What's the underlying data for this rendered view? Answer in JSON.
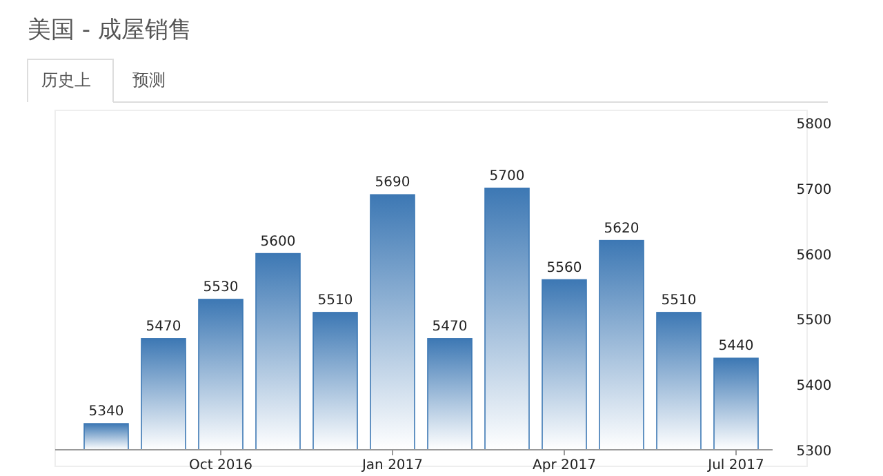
{
  "chart_data": {
    "type": "bar",
    "title": "美国 - 成屋销售",
    "annotations": [
      "历史上",
      "预测"
    ],
    "categories": [
      null,
      null,
      "Oct 2016",
      null,
      null,
      "Jan 2017",
      null,
      null,
      "Apr 2017",
      null,
      null,
      "Jul 2017"
    ],
    "values": [
      5340,
      5470,
      5530,
      5600,
      5510,
      5690,
      5470,
      5700,
      5560,
      5620,
      5510,
      5440
    ],
    "color": "#3d78b4",
    "ylim": [
      5300,
      5800
    ],
    "yticks": [
      5300,
      5400,
      5500,
      5600,
      5700,
      5800
    ],
    "data_labels": true
  }
}
